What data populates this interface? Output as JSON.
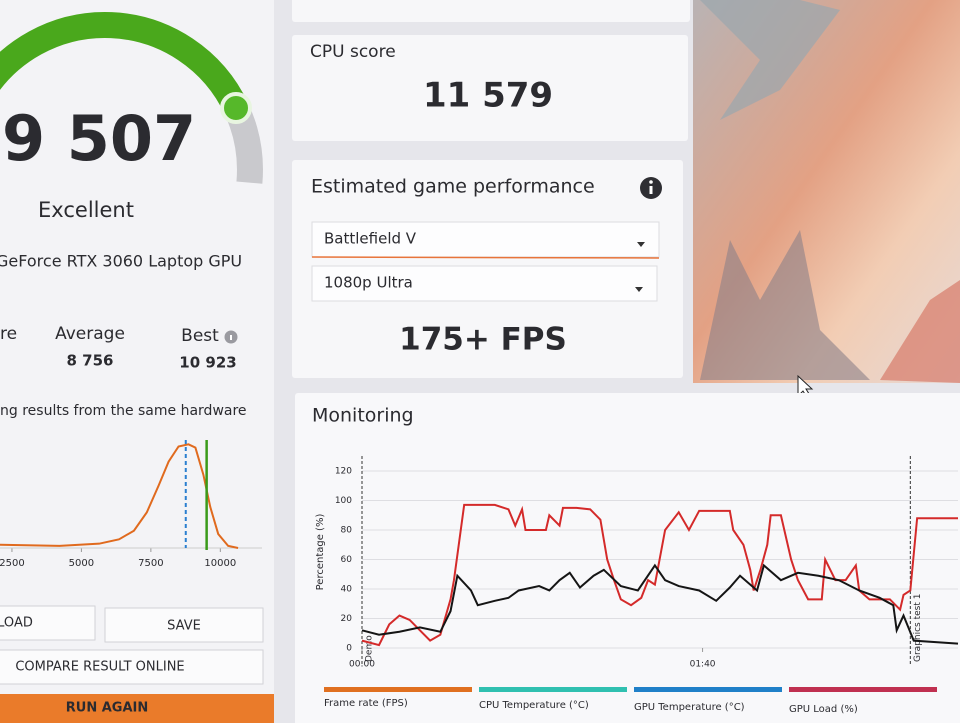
{
  "score": {
    "value": "9 507",
    "rating": "Excellent",
    "gpu": "GeForce RTX 3060 Laptop GPU"
  },
  "comparison": {
    "left_label": "re",
    "average_label": "Average",
    "average": "8 756",
    "best_label": "Best",
    "best": "10 923",
    "note": "ng results from the same hardware"
  },
  "distribution": {
    "xlim": [
      2070,
      11500
    ],
    "ylim": [
      0,
      100
    ],
    "xticks": [
      2500,
      5000,
      7500,
      10000
    ],
    "x": [
      2070,
      4212,
      5640,
      6354,
      6890,
      7354,
      7782,
      8139,
      8496,
      8853,
      9103,
      9389,
      9638,
      9924,
      10281,
      10638
    ],
    "values": [
      3,
      2,
      4,
      8,
      16,
      33,
      58,
      80,
      94,
      96,
      93,
      68,
      38,
      13,
      2,
      0
    ],
    "color": "#e06a1e",
    "average_color": "#2a7fd0",
    "score_color": "#3a9a1a"
  },
  "buttons": {
    "load": "LOAD",
    "save": "SAVE",
    "compare": "COMPARE RESULT ONLINE",
    "run": "RUN AGAIN"
  },
  "cpu": {
    "label": "CPU score",
    "value": "11 579"
  },
  "game": {
    "title": "Estimated game performance",
    "game": "Battlefield V",
    "preset": "1080p Ultra",
    "fps": "175+ FPS"
  },
  "monitoring": {
    "title": "Monitoring",
    "ylabel": "Percentage (%)",
    "ylim": [
      0,
      120
    ],
    "yticks": [
      0,
      20,
      40,
      60,
      80,
      100,
      120
    ],
    "xlim": [
      0,
      175
    ],
    "xticks": [
      {
        "value": 0,
        "label": "00:00"
      },
      {
        "value": 100,
        "label": "01:40"
      }
    ],
    "markers": [
      {
        "x": 0,
        "label": "Demo"
      },
      {
        "x": 161,
        "label": "Graphics test 1"
      }
    ],
    "legend": [
      {
        "name": "Frame rate (FPS)",
        "color": "#e07020"
      },
      {
        "name": "CPU Temperature (°C)",
        "color": "#30c0b0"
      },
      {
        "name": "GPU Temperature (°C)",
        "color": "#2080c8"
      },
      {
        "name": "GPU Load (%)",
        "color": "#c03050"
      }
    ],
    "lines": [
      {
        "color": "#d42a2a",
        "x": [
          0,
          5,
          8,
          11,
          14,
          17,
          20,
          23,
          26,
          27,
          30,
          32,
          39,
          43,
          45,
          47,
          48,
          54,
          55,
          58,
          59,
          63,
          67,
          70,
          72,
          74,
          76,
          79,
          82,
          84,
          86,
          89,
          93,
          96,
          99,
          108,
          109,
          112,
          114,
          115,
          117,
          119,
          120,
          123,
          126,
          128,
          131,
          135,
          136,
          139,
          142,
          145,
          146,
          149,
          155,
          158,
          159,
          161,
          163,
          175
        ],
        "values": [
          5,
          2,
          16,
          22,
          19,
          12,
          5,
          9,
          33,
          46,
          97,
          97,
          97,
          94,
          83,
          94,
          80,
          80,
          90,
          83,
          95,
          95,
          94,
          87,
          60,
          46,
          33,
          29,
          34,
          46,
          43,
          80,
          92,
          80,
          93,
          93,
          80,
          70,
          53,
          39,
          53,
          70,
          90,
          90,
          60,
          46,
          33,
          33,
          60,
          46,
          46,
          56,
          39,
          33,
          33,
          26,
          36,
          39,
          88,
          88
        ]
      },
      {
        "color": "#151515",
        "x": [
          0,
          5,
          11,
          17,
          23,
          26,
          28,
          32,
          34,
          39,
          43,
          46,
          52,
          55,
          58,
          61,
          64,
          68,
          71,
          76,
          81,
          86,
          89,
          93,
          99,
          104,
          108,
          111,
          116,
          118,
          123,
          128,
          134,
          140,
          146,
          152,
          156,
          157,
          159,
          162,
          175
        ],
        "values": [
          12,
          9,
          11,
          14,
          11,
          25,
          49,
          39,
          29,
          32,
          34,
          39,
          42,
          39,
          46,
          51,
          41,
          49,
          53,
          42,
          39,
          56,
          46,
          42,
          39,
          32,
          41,
          49,
          39,
          56,
          46,
          51,
          49,
          46,
          39,
          34,
          29,
          12,
          22,
          5,
          3
        ]
      }
    ]
  }
}
